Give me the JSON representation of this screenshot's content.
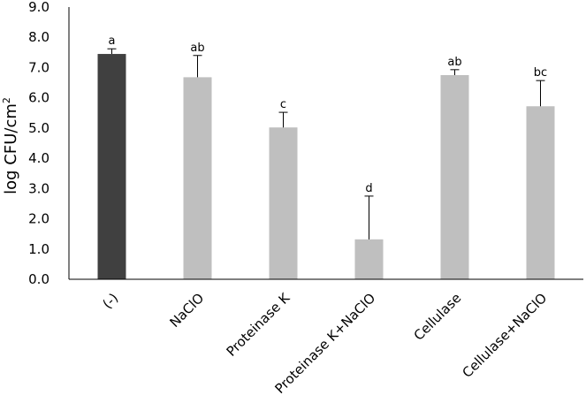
{
  "chart_data": {
    "type": "bar",
    "title": "",
    "xlabel": "",
    "ylabel": "log CFU/cm",
    "ylabel_superscript": "2",
    "ylim": [
      0,
      9
    ],
    "yticks": [
      "0.0",
      "1.0",
      "2.0",
      "3.0",
      "4.0",
      "5.0",
      "6.0",
      "7.0",
      "8.0",
      "9.0"
    ],
    "categories": [
      "(-)",
      "NaClO",
      "Proteinase K",
      "Proteinase K+NaClO",
      "Cellulase",
      "Cellulase+NaClO"
    ],
    "values": [
      7.45,
      6.68,
      5.02,
      1.32,
      6.75,
      5.72
    ],
    "errors": [
      0.17,
      0.72,
      0.5,
      1.43,
      0.18,
      0.85
    ],
    "significance": [
      "a",
      "ab",
      "c",
      "d",
      "ab",
      "bc"
    ],
    "bar_colors": [
      "#404040",
      "#bfbfbf",
      "#bfbfbf",
      "#bfbfbf",
      "#bfbfbf",
      "#bfbfbf"
    ],
    "grid": false,
    "legend": "none"
  }
}
